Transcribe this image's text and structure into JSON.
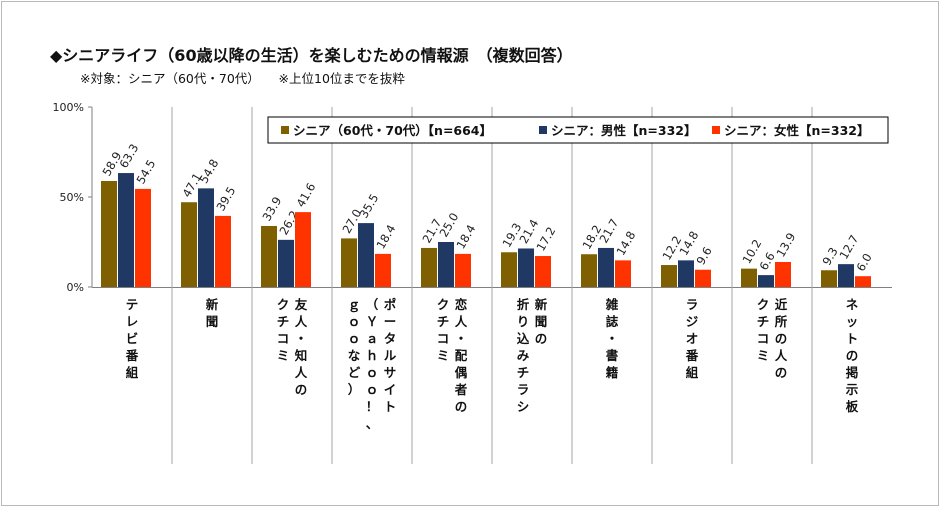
{
  "header": {
    "title": "◆シニアライフ（60歳以降の生活）を楽しむための情報源　（複数回答）",
    "subtitle": "※対象：シニア（60代・70代）　　※上位10位までを抜粋"
  },
  "chart_data": {
    "type": "bar",
    "title": "◆シニアライフ（60歳以降の生活）を楽しむための情報源　（複数回答）",
    "subtitle": "※対象：シニア（60代・70代）　　※上位10位までを抜粋",
    "categories": [
      "テレビ番組",
      "新聞",
      "友人・知人のクチコミ",
      "ポータルサイト（Yahoo!、gooなど）",
      "恋人・配偶者のクチコミ",
      "新聞の折り込みチラシ",
      "雑誌・書籍",
      "ラジオ番組",
      "近所の人のクチコミ",
      "ネットの掲示板"
    ],
    "category_lines": [
      [
        [
          "テ",
          "レ",
          "ビ",
          "番",
          "組"
        ]
      ],
      [
        [
          "新",
          "聞"
        ]
      ],
      [
        [
          "友",
          "人",
          "・",
          "知",
          "人",
          "の"
        ],
        [
          "ク",
          "チ",
          "コ",
          "ミ"
        ]
      ],
      [
        [
          "ポ",
          "ー",
          "タ",
          "ル",
          "サ",
          "イ",
          "ト"
        ],
        [
          "（",
          "Ｙ",
          "ａ",
          "ｈ",
          "ｏ",
          "ｏ",
          "！",
          "、"
        ],
        [
          "ｇ",
          "ｏ",
          "ｏ",
          "な",
          "ど",
          "）"
        ]
      ],
      [
        [
          "恋",
          "人",
          "・",
          "配",
          "偶",
          "者",
          "の"
        ],
        [
          "ク",
          "チ",
          "コ",
          "ミ"
        ]
      ],
      [
        [
          "新",
          "聞",
          "の"
        ],
        [
          "折",
          "り",
          "込",
          "み",
          "チ",
          "ラ",
          "シ"
        ]
      ],
      [
        [
          "雑",
          "誌",
          "・",
          "書",
          "籍"
        ]
      ],
      [
        [
          "ラ",
          "ジ",
          "オ",
          "番",
          "組"
        ]
      ],
      [
        [
          "近",
          "所",
          "の",
          "人",
          "の"
        ],
        [
          "ク",
          "チ",
          "コ",
          "ミ"
        ]
      ],
      [
        [
          "ネ",
          "ッ",
          "ト",
          "の",
          "掲",
          "示",
          "板"
        ]
      ]
    ],
    "series": [
      {
        "name": "シニア（60代・70代）【n=664】",
        "color": "#7f6000",
        "values": [
          58.9,
          47.1,
          33.9,
          27.0,
          21.7,
          19.3,
          18.2,
          12.2,
          10.2,
          9.3
        ]
      },
      {
        "name": "シニア：男性【n=332】",
        "color": "#1f3864",
        "values": [
          63.3,
          54.8,
          26.2,
          35.5,
          25.0,
          21.4,
          21.7,
          14.8,
          6.6,
          12.7
        ]
      },
      {
        "name": "シニア：女性【n=332】",
        "color": "#ff3300",
        "values": [
          54.5,
          39.5,
          41.6,
          18.4,
          18.4,
          17.2,
          14.8,
          9.6,
          13.9,
          6.0
        ]
      }
    ],
    "y_ticks": [
      "0%",
      "50%",
      "100%"
    ],
    "ylim": [
      0,
      100
    ],
    "legend_position": "top-right",
    "grid": false
  }
}
